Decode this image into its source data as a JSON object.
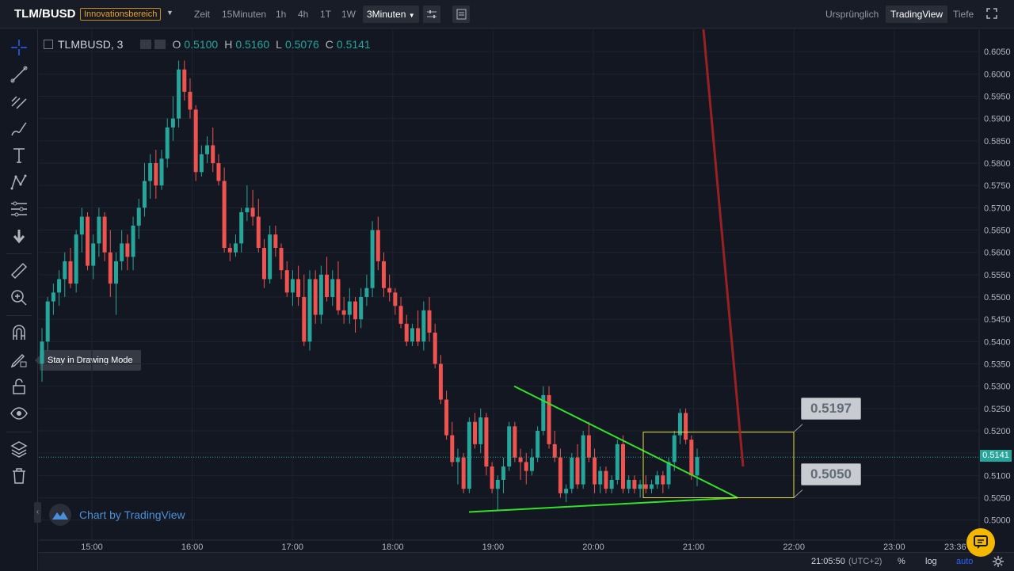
{
  "header": {
    "pair": "TLM/BUSD",
    "badge": "Innovationsbereich",
    "timeframes": [
      {
        "label": "Zeit",
        "active": false
      },
      {
        "label": "15Minuten",
        "active": false
      },
      {
        "label": "1h",
        "active": false
      },
      {
        "label": "4h",
        "active": false
      },
      {
        "label": "1T",
        "active": false
      },
      {
        "label": "1W",
        "active": false
      },
      {
        "label": "3Minuten",
        "active": true
      }
    ],
    "views": [
      {
        "label": "Ursprünglich",
        "active": false
      },
      {
        "label": "TradingView",
        "active": true
      },
      {
        "label": "Tiefe",
        "active": false
      }
    ]
  },
  "legend": {
    "symbol": "TLMBUSD, 3",
    "open_label": "O",
    "open": "0.5100",
    "high_label": "H",
    "high": "0.5160",
    "low_label": "L",
    "low": "0.5076",
    "close_label": "C",
    "close": "0.5141"
  },
  "tooltip": "Stay in Drawing Mode",
  "brand": "Chart by TradingView",
  "last_price": "0.5141",
  "callouts": {
    "upper": "0.5197",
    "lower": "0.5050"
  },
  "bottombar": {
    "time": "21:05:50",
    "tz": "(UTC+2)",
    "percent": "%",
    "log": "log",
    "auto": "auto"
  },
  "colors": {
    "up": "#26a69a",
    "down": "#ef5350",
    "bg": "#131722",
    "trend": "#33e02a",
    "box": "#e6e23c",
    "arrow": "#b22222"
  },
  "chart_data": {
    "type": "candlestick",
    "y_ticks": [
      "0.6050",
      "0.6000",
      "0.5950",
      "0.5900",
      "0.5850",
      "0.5800",
      "0.5750",
      "0.5700",
      "0.5650",
      "0.5600",
      "0.5550",
      "0.5500",
      "0.5450",
      "0.5400",
      "0.5350",
      "0.5300",
      "0.5250",
      "0.5200",
      "0.5150",
      "0.5100",
      "0.5050",
      "0.5000"
    ],
    "x_ticks": [
      "15:00",
      "16:00",
      "17:00",
      "18:00",
      "19:00",
      "20:00",
      "21:00",
      "22:00",
      "23:00",
      "23:36"
    ],
    "ylim": [
      0.4955,
      0.61
    ],
    "candles": [
      [
        0.535,
        0.543,
        0.531,
        0.54
      ],
      [
        0.54,
        0.55,
        0.538,
        0.549
      ],
      [
        0.549,
        0.553,
        0.546,
        0.551
      ],
      [
        0.551,
        0.556,
        0.548,
        0.554
      ],
      [
        0.554,
        0.56,
        0.55,
        0.558
      ],
      [
        0.558,
        0.561,
        0.552,
        0.553
      ],
      [
        0.553,
        0.565,
        0.551,
        0.564
      ],
      [
        0.564,
        0.57,
        0.56,
        0.568
      ],
      [
        0.568,
        0.569,
        0.556,
        0.557
      ],
      [
        0.557,
        0.564,
        0.554,
        0.562
      ],
      [
        0.562,
        0.57,
        0.559,
        0.568
      ],
      [
        0.568,
        0.569,
        0.558,
        0.56
      ],
      [
        0.56,
        0.565,
        0.55,
        0.553
      ],
      [
        0.553,
        0.56,
        0.546,
        0.558
      ],
      [
        0.558,
        0.565,
        0.556,
        0.562
      ],
      [
        0.562,
        0.564,
        0.556,
        0.559
      ],
      [
        0.559,
        0.568,
        0.556,
        0.566
      ],
      [
        0.566,
        0.572,
        0.563,
        0.57
      ],
      [
        0.57,
        0.58,
        0.568,
        0.576
      ],
      [
        0.576,
        0.582,
        0.572,
        0.58
      ],
      [
        0.58,
        0.583,
        0.572,
        0.575
      ],
      [
        0.575,
        0.583,
        0.574,
        0.581
      ],
      [
        0.581,
        0.59,
        0.579,
        0.588
      ],
      [
        0.588,
        0.595,
        0.585,
        0.59
      ],
      [
        0.59,
        0.603,
        0.588,
        0.601
      ],
      [
        0.601,
        0.603,
        0.594,
        0.596
      ],
      [
        0.596,
        0.599,
        0.59,
        0.592
      ],
      [
        0.592,
        0.593,
        0.576,
        0.578
      ],
      [
        0.578,
        0.584,
        0.577,
        0.582
      ],
      [
        0.582,
        0.586,
        0.58,
        0.584
      ],
      [
        0.584,
        0.588,
        0.578,
        0.58
      ],
      [
        0.58,
        0.582,
        0.575,
        0.576
      ],
      [
        0.576,
        0.579,
        0.56,
        0.561
      ],
      [
        0.561,
        0.562,
        0.558,
        0.56
      ],
      [
        0.56,
        0.564,
        0.559,
        0.562
      ],
      [
        0.562,
        0.57,
        0.56,
        0.569
      ],
      [
        0.569,
        0.575,
        0.567,
        0.57
      ],
      [
        0.57,
        0.574,
        0.566,
        0.568
      ],
      [
        0.568,
        0.572,
        0.56,
        0.561
      ],
      [
        0.561,
        0.563,
        0.552,
        0.554
      ],
      [
        0.554,
        0.566,
        0.553,
        0.564
      ],
      [
        0.564,
        0.566,
        0.559,
        0.561
      ],
      [
        0.561,
        0.562,
        0.554,
        0.556
      ],
      [
        0.556,
        0.558,
        0.55,
        0.551
      ],
      [
        0.551,
        0.556,
        0.548,
        0.554
      ],
      [
        0.554,
        0.557,
        0.548,
        0.55
      ],
      [
        0.55,
        0.555,
        0.539,
        0.54
      ],
      [
        0.54,
        0.556,
        0.538,
        0.554
      ],
      [
        0.554,
        0.556,
        0.544,
        0.546
      ],
      [
        0.546,
        0.557,
        0.544,
        0.555
      ],
      [
        0.555,
        0.559,
        0.549,
        0.55
      ],
      [
        0.55,
        0.556,
        0.548,
        0.554
      ],
      [
        0.554,
        0.558,
        0.546,
        0.547
      ],
      [
        0.547,
        0.55,
        0.544,
        0.546
      ],
      [
        0.546,
        0.552,
        0.544,
        0.549
      ],
      [
        0.549,
        0.55,
        0.542,
        0.545
      ],
      [
        0.545,
        0.552,
        0.543,
        0.55
      ],
      [
        0.55,
        0.555,
        0.548,
        0.552
      ],
      [
        0.552,
        0.567,
        0.55,
        0.565
      ],
      [
        0.565,
        0.568,
        0.556,
        0.558
      ],
      [
        0.558,
        0.56,
        0.55,
        0.552
      ],
      [
        0.552,
        0.555,
        0.549,
        0.551
      ],
      [
        0.551,
        0.552,
        0.546,
        0.548
      ],
      [
        0.548,
        0.55,
        0.543,
        0.544
      ],
      [
        0.544,
        0.546,
        0.539,
        0.54
      ],
      [
        0.54,
        0.544,
        0.539,
        0.543
      ],
      [
        0.543,
        0.547,
        0.539,
        0.54
      ],
      [
        0.54,
        0.549,
        0.538,
        0.547
      ],
      [
        0.547,
        0.55,
        0.54,
        0.542
      ],
      [
        0.542,
        0.544,
        0.534,
        0.535
      ],
      [
        0.535,
        0.537,
        0.526,
        0.527
      ],
      [
        0.527,
        0.529,
        0.518,
        0.519
      ],
      [
        0.519,
        0.522,
        0.512,
        0.513
      ],
      [
        0.513,
        0.516,
        0.508,
        0.514
      ],
      [
        0.514,
        0.515,
        0.506,
        0.507
      ],
      [
        0.507,
        0.523,
        0.506,
        0.522
      ],
      [
        0.522,
        0.524,
        0.516,
        0.517
      ],
      [
        0.517,
        0.525,
        0.515,
        0.523
      ],
      [
        0.523,
        0.524,
        0.51,
        0.512
      ],
      [
        0.512,
        0.513,
        0.506,
        0.507
      ],
      [
        0.507,
        0.51,
        0.502,
        0.509
      ],
      [
        0.509,
        0.514,
        0.506,
        0.512
      ],
      [
        0.512,
        0.522,
        0.511,
        0.521
      ],
      [
        0.521,
        0.522,
        0.513,
        0.514
      ],
      [
        0.514,
        0.516,
        0.509,
        0.513
      ],
      [
        0.513,
        0.515,
        0.508,
        0.511
      ],
      [
        0.511,
        0.516,
        0.51,
        0.514
      ],
      [
        0.514,
        0.521,
        0.513,
        0.52
      ],
      [
        0.52,
        0.53,
        0.519,
        0.528
      ],
      [
        0.528,
        0.53,
        0.516,
        0.517
      ],
      [
        0.517,
        0.52,
        0.513,
        0.514
      ],
      [
        0.514,
        0.516,
        0.505,
        0.506
      ],
      [
        0.506,
        0.508,
        0.504,
        0.507
      ],
      [
        0.507,
        0.515,
        0.506,
        0.514
      ],
      [
        0.514,
        0.517,
        0.507,
        0.508
      ],
      [
        0.508,
        0.52,
        0.507,
        0.519
      ],
      [
        0.519,
        0.522,
        0.513,
        0.514
      ],
      [
        0.514,
        0.516,
        0.506,
        0.508
      ],
      [
        0.508,
        0.512,
        0.506,
        0.511
      ],
      [
        0.511,
        0.512,
        0.506,
        0.507
      ],
      [
        0.507,
        0.51,
        0.506,
        0.509
      ],
      [
        0.509,
        0.518,
        0.508,
        0.517
      ],
      [
        0.517,
        0.519,
        0.506,
        0.507
      ],
      [
        0.507,
        0.51,
        0.506,
        0.509
      ],
      [
        0.509,
        0.51,
        0.506,
        0.507
      ],
      [
        0.507,
        0.509,
        0.505,
        0.508
      ],
      [
        0.508,
        0.51,
        0.506,
        0.507
      ],
      [
        0.507,
        0.509,
        0.506,
        0.508
      ],
      [
        0.508,
        0.511,
        0.507,
        0.51
      ],
      [
        0.51,
        0.511,
        0.506,
        0.508
      ],
      [
        0.508,
        0.514,
        0.507,
        0.513
      ],
      [
        0.513,
        0.52,
        0.511,
        0.519
      ],
      [
        0.519,
        0.525,
        0.517,
        0.524
      ],
      [
        0.524,
        0.525,
        0.517,
        0.518
      ],
      [
        0.518,
        0.519,
        0.509,
        0.51
      ],
      [
        0.51,
        0.516,
        0.5076,
        0.5141
      ]
    ]
  }
}
